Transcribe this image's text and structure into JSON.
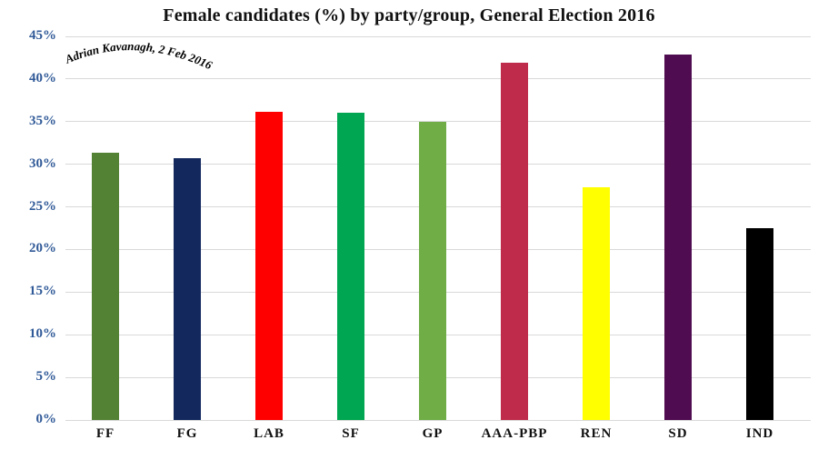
{
  "title": "Female candidates (%) by party/group, General Election 2016",
  "annotation": {
    "text": "Adrian Kavanagh, 2 Feb 2016"
  },
  "colors": {
    "title_text": "#111111",
    "axis_label_blue": "#315a98",
    "x_label_black": "#111111",
    "gridline": "#d9d9d9",
    "annotation_text": "#000000",
    "background": "#ffffff"
  },
  "chart_data": {
    "type": "bar",
    "title": "Female candidates (%) by party/group, General Election 2016",
    "categories": [
      "FF",
      "FG",
      "LAB",
      "SF",
      "GP",
      "AAA-PBP",
      "REN",
      "SD",
      "IND"
    ],
    "values": [
      31.4,
      30.7,
      36.1,
      36.0,
      35.0,
      41.9,
      27.3,
      42.9,
      22.5
    ],
    "bar_colors": [
      "#548235",
      "#13295e",
      "#ff0000",
      "#00a651",
      "#70ad47",
      "#bf2c4b",
      "#ffff00",
      "#4f0c50",
      "#000000"
    ],
    "xlabel": "",
    "ylabel": "",
    "ylim": [
      0,
      45
    ],
    "y_tick_step": 5,
    "y_tick_labels": [
      "0%",
      "5%",
      "10%",
      "15%",
      "20%",
      "25%",
      "30%",
      "35%",
      "40%",
      "45%"
    ],
    "grid": true,
    "legend": false,
    "annotation": "Adrian Kavanagh, 2 Feb 2016"
  }
}
